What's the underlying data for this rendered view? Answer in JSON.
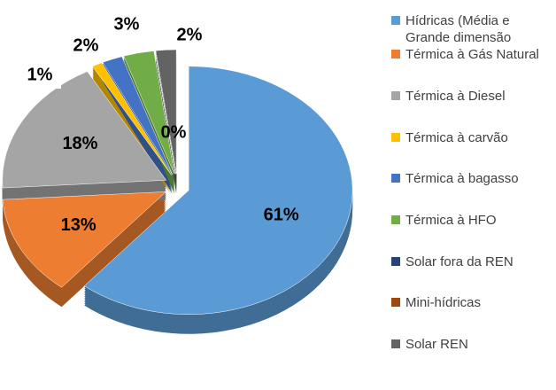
{
  "chart_data": {
    "type": "pie",
    "categories": [
      "Hídricas (Média e Grande dimensão",
      "Térmica à Gás Natural",
      "Térmica à Diesel",
      "Térmica à carvão",
      "Térmica à bagasso",
      "Térmica à HFO",
      "Solar fora da REN",
      "Mini-hídricas",
      "Solar REN"
    ],
    "values": [
      61,
      13,
      18,
      1,
      2,
      3,
      0,
      0,
      2
    ],
    "value_labels": [
      "61%",
      "13%",
      "18%",
      "1%",
      "2%",
      "3%",
      "0%",
      null,
      "2%"
    ],
    "colors": [
      "#5b9bd5",
      "#ed7d31",
      "#a5a5a5",
      "#ffc000",
      "#4472c4",
      "#70ad47",
      "#264478",
      "#9e480e",
      "#636363"
    ],
    "legend": "right"
  }
}
